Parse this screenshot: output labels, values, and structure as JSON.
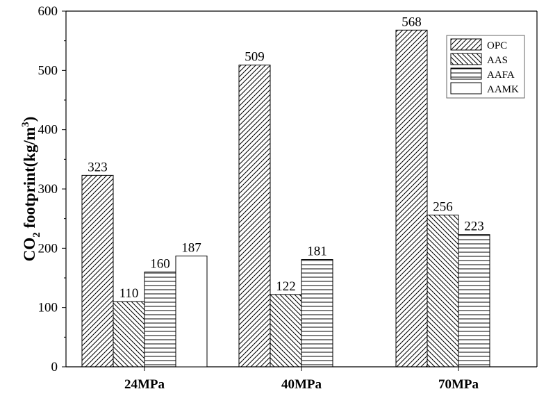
{
  "chart_data": {
    "type": "bar",
    "categories": [
      "24MPa",
      "40MPa",
      "70MPa"
    ],
    "series": [
      {
        "name": "OPC",
        "pattern": "hatch-fwd",
        "values": [
          323,
          509,
          568
        ]
      },
      {
        "name": "AAS",
        "pattern": "hatch-back",
        "values": [
          110,
          122,
          256
        ]
      },
      {
        "name": "AAFA",
        "pattern": "hatch-horiz",
        "values": [
          160,
          181,
          223
        ]
      },
      {
        "name": "AAMK",
        "pattern": "none",
        "values": [
          187,
          null,
          null
        ]
      }
    ],
    "ylabel": {
      "prefix": "CO",
      "subscript": "2",
      "middle": " footprint(kg/m",
      "superscript": "3",
      "suffix": ")"
    },
    "xlabel": "",
    "ylim": [
      0,
      600
    ],
    "yticks": [
      0,
      100,
      200,
      300,
      400,
      500,
      600
    ],
    "grid": false,
    "legend_position": "top-right",
    "colors": {
      "stroke": "#000000",
      "background": "#ffffff"
    }
  }
}
